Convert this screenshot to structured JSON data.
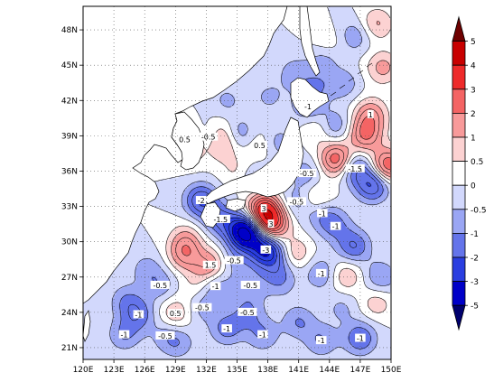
{
  "chart_data": {
    "type": "heatmap",
    "title": "",
    "xlabel": "",
    "ylabel": "",
    "xlim": [
      120,
      150
    ],
    "ylim": [
      20,
      50
    ],
    "x_ticks": [
      {
        "value": 120,
        "label": "120E"
      },
      {
        "value": 123,
        "label": "123E"
      },
      {
        "value": 126,
        "label": "126E"
      },
      {
        "value": 129,
        "label": "129E"
      },
      {
        "value": 132,
        "label": "132E"
      },
      {
        "value": 135,
        "label": "135E"
      },
      {
        "value": 138,
        "label": "138E"
      },
      {
        "value": 141,
        "label": "141E"
      },
      {
        "value": 144,
        "label": "144E"
      },
      {
        "value": 147,
        "label": "147E"
      },
      {
        "value": 150,
        "label": "150E"
      }
    ],
    "y_ticks": [
      {
        "value": 21,
        "label": "21N"
      },
      {
        "value": 24,
        "label": "24N"
      },
      {
        "value": 27,
        "label": "27N"
      },
      {
        "value": 30,
        "label": "30N"
      },
      {
        "value": 33,
        "label": "33N"
      },
      {
        "value": 36,
        "label": "36N"
      },
      {
        "value": 39,
        "label": "39N"
      },
      {
        "value": 42,
        "label": "42N"
      },
      {
        "value": 45,
        "label": "45N"
      },
      {
        "value": 48,
        "label": "48N"
      }
    ],
    "grid": true,
    "colorbar": {
      "placement": "right",
      "levels": [
        "5",
        "4",
        "3",
        "2",
        "1",
        "0.5",
        "0",
        "-0.5",
        "-1",
        "-2",
        "-3",
        "-5"
      ],
      "colors": [
        "#6e0000",
        "#c80000",
        "#ee2a2a",
        "#f46464",
        "#f89a9a",
        "#fcd2d2",
        "#ffffff",
        "#d2d8fc",
        "#9aa6f4",
        "#6474ea",
        "#2a3ee0",
        "#0000c8",
        "#00006e"
      ]
    },
    "anomaly_centers": [
      {
        "lon": 137.6,
        "lat": 32.8,
        "value": 3,
        "label": "3"
      },
      {
        "lon": 137.8,
        "lat": 29.3,
        "value": -3,
        "label": "-3"
      },
      {
        "lon": 135.8,
        "lat": 30.8,
        "value": -4.5,
        "label": ""
      },
      {
        "lon": 138.3,
        "lat": 31.5,
        "value": 3,
        "label": "3"
      },
      {
        "lon": 133.4,
        "lat": 31.9,
        "value": -1.5,
        "label": "-1.5"
      },
      {
        "lon": 132.4,
        "lat": 28.0,
        "value": 1.5,
        "label": "1.5"
      },
      {
        "lon": 129.9,
        "lat": 28.9,
        "value": 1.5,
        "label": ""
      },
      {
        "lon": 131.5,
        "lat": 33.5,
        "value": -2,
        "label": "-2"
      },
      {
        "lon": 130.0,
        "lat": 30.2,
        "value": 1,
        "label": ""
      },
      {
        "lon": 149.7,
        "lat": 36.5,
        "value": 2.5,
        "label": ""
      },
      {
        "lon": 144.7,
        "lat": 37.0,
        "value": 2.5,
        "label": ""
      },
      {
        "lon": 148.2,
        "lat": 34.8,
        "value": -2,
        "label": ""
      },
      {
        "lon": 147.5,
        "lat": 39.1,
        "value": 2,
        "label": ""
      },
      {
        "lon": 146.5,
        "lat": 36.2,
        "value": -1.5,
        "label": "-1.5"
      },
      {
        "lon": 148.0,
        "lat": 40.8,
        "value": 1.5,
        "label": "1"
      },
      {
        "lon": 142.8,
        "lat": 33.6,
        "value": 1,
        "label": ""
      },
      {
        "lon": 143.3,
        "lat": 32.4,
        "value": -1,
        "label": "-1"
      },
      {
        "lon": 144.6,
        "lat": 31.3,
        "value": -1,
        "label": "-1"
      },
      {
        "lon": 146.4,
        "lat": 29.6,
        "value": -1.5,
        "label": ""
      },
      {
        "lon": 143.2,
        "lat": 27.3,
        "value": -1,
        "label": "-1"
      },
      {
        "lon": 140.6,
        "lat": 29.0,
        "value": 1,
        "label": ""
      },
      {
        "lon": 145.6,
        "lat": 27.1,
        "value": 1,
        "label": ""
      },
      {
        "lon": 149.0,
        "lat": 27.0,
        "value": -1,
        "label": ""
      },
      {
        "lon": 148.6,
        "lat": 24.8,
        "value": 0.8,
        "label": ""
      },
      {
        "lon": 143.2,
        "lat": 21.6,
        "value": -1,
        "label": "-1"
      },
      {
        "lon": 147.0,
        "lat": 21.8,
        "value": -1.5,
        "label": "-1"
      },
      {
        "lon": 141.0,
        "lat": 23.2,
        "value": -1,
        "label": ""
      },
      {
        "lon": 137.5,
        "lat": 22.1,
        "value": -1,
        "label": "-1"
      },
      {
        "lon": 134.0,
        "lat": 22.6,
        "value": -1.2,
        "label": "-1"
      },
      {
        "lon": 136.0,
        "lat": 24.0,
        "value": -1,
        "label": "-0.5"
      },
      {
        "lon": 129.0,
        "lat": 23.9,
        "value": 1,
        "label": "0.5"
      },
      {
        "lon": 125.4,
        "lat": 23.8,
        "value": -1.2,
        "label": "-1"
      },
      {
        "lon": 124.0,
        "lat": 22.1,
        "value": -1,
        "label": "-1"
      },
      {
        "lon": 129.3,
        "lat": 21.4,
        "value": -0.8,
        "label": ""
      },
      {
        "lon": 127.5,
        "lat": 26.3,
        "value": -0.8,
        "label": "-0.5"
      },
      {
        "lon": 132.9,
        "lat": 26.2,
        "value": -1,
        "label": "-1"
      },
      {
        "lon": 131.2,
        "lat": 26.3,
        "value": 0.6,
        "label": ""
      },
      {
        "lon": 136.3,
        "lat": 26.3,
        "value": -0.8,
        "label": "-0.5"
      },
      {
        "lon": 139.2,
        "lat": 26.6,
        "value": -0.8,
        "label": ""
      },
      {
        "lon": 126.2,
        "lat": 27.7,
        "value": -0.7,
        "label": ""
      },
      {
        "lon": 124.2,
        "lat": 25.0,
        "value": -0.9,
        "label": ""
      },
      {
        "lon": 133.5,
        "lat": 38.2,
        "value": 1,
        "label": ""
      },
      {
        "lon": 133.5,
        "lat": 39.3,
        "value": 0.8,
        "label": ""
      },
      {
        "lon": 129.9,
        "lat": 38.7,
        "value": 1.2,
        "label": "0.5"
      },
      {
        "lon": 132.2,
        "lat": 38.9,
        "value": -0.8,
        "label": "-0.5"
      },
      {
        "lon": 135.2,
        "lat": 39.2,
        "value": -1,
        "label": ""
      },
      {
        "lon": 135.0,
        "lat": 36.0,
        "value": 0.6,
        "label": ""
      },
      {
        "lon": 130.6,
        "lat": 37.7,
        "value": 0.6,
        "label": ""
      },
      {
        "lon": 137.2,
        "lat": 38.2,
        "value": 0.6,
        "label": "0.5"
      },
      {
        "lon": 136.7,
        "lat": 35.4,
        "value": -0.7,
        "label": ""
      },
      {
        "lon": 139.0,
        "lat": 38.4,
        "value": -0.8,
        "label": ""
      },
      {
        "lon": 138.1,
        "lat": 42.3,
        "value": -0.6,
        "label": ""
      },
      {
        "lon": 134.0,
        "lat": 42.0,
        "value": -0.6,
        "label": ""
      },
      {
        "lon": 143.5,
        "lat": 45.8,
        "value": -1,
        "label": ""
      },
      {
        "lon": 143.7,
        "lat": 46.6,
        "value": 0.8,
        "label": ""
      },
      {
        "lon": 142.8,
        "lat": 43.3,
        "value": -0.8,
        "label": ""
      },
      {
        "lon": 144.5,
        "lat": 39.8,
        "value": -1,
        "label": ""
      },
      {
        "lon": 142.8,
        "lat": 39.5,
        "value": 0.7,
        "label": ""
      },
      {
        "lon": 145.4,
        "lat": 43.4,
        "value": -0.8,
        "label": ""
      },
      {
        "lon": 149.2,
        "lat": 44.8,
        "value": 1.2,
        "label": ""
      },
      {
        "lon": 148.6,
        "lat": 48.5,
        "value": 1.1,
        "label": ""
      },
      {
        "lon": 146.5,
        "lat": 47.5,
        "value": -0.9,
        "label": ""
      },
      {
        "lon": 141.9,
        "lat": 41.5,
        "value": -1,
        "label": "-1"
      },
      {
        "lon": 140.6,
        "lat": 44.3,
        "value": -0.8,
        "label": ""
      },
      {
        "lon": 141.8,
        "lat": 35.8,
        "value": -0.8,
        "label": "-0.5"
      },
      {
        "lon": 140.8,
        "lat": 33.4,
        "value": -0.8,
        "label": "-0.5"
      },
      {
        "lon": 131.6,
        "lat": 24.4,
        "value": -0.7,
        "label": "-0.5"
      },
      {
        "lon": 128.0,
        "lat": 22.0,
        "value": -0.6,
        "label": "-0.5"
      },
      {
        "lon": 145.2,
        "lat": 24.4,
        "value": -0.6,
        "label": ""
      },
      {
        "lon": 139.0,
        "lat": 28.0,
        "value": -0.8,
        "label": ""
      },
      {
        "lon": 134.7,
        "lat": 28.4,
        "value": -0.7,
        "label": "-0.5"
      }
    ]
  }
}
